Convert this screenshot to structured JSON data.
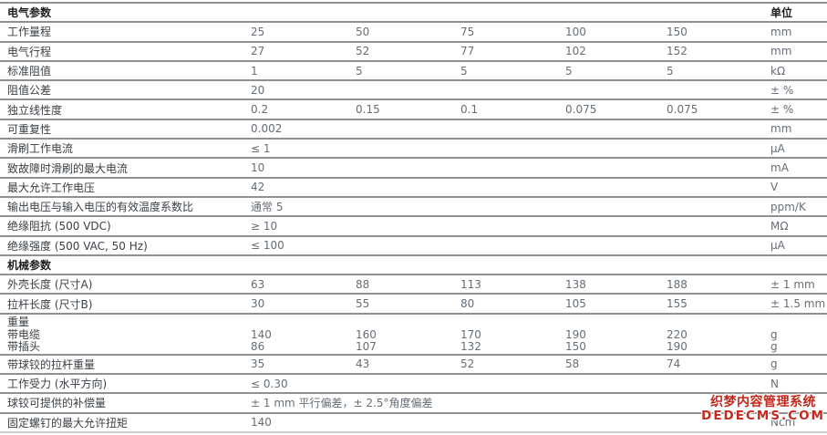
{
  "colors": {
    "row_line": "#a2a2a2",
    "label_text": "#3b4045",
    "value_text": "#666e76",
    "header_text": "#1d1f21",
    "watermark_red": "#c5281c"
  },
  "table": {
    "rows": [
      {
        "type": "section",
        "label": "电气参数",
        "unit": "单位"
      },
      {
        "type": "data",
        "label": "工作量程",
        "values": [
          "25",
          "50",
          "75",
          "100",
          "150"
        ],
        "unit": "mm"
      },
      {
        "type": "data",
        "label": "电气行程",
        "values": [
          "27",
          "52",
          "77",
          "102",
          "152"
        ],
        "unit": "mm"
      },
      {
        "type": "data",
        "label": "标准阻值",
        "values": [
          "1",
          "5",
          "5",
          "5",
          "5"
        ],
        "unit": "kΩ"
      },
      {
        "type": "data",
        "label": "阻值公差",
        "values": [
          "20",
          "",
          "",
          "",
          ""
        ],
        "unit": "± %"
      },
      {
        "type": "data",
        "label": "独立线性度",
        "values": [
          "0.2",
          "0.15",
          "0.1",
          "0.075",
          "0.075"
        ],
        "unit": "± %"
      },
      {
        "type": "data",
        "label": "可重复性",
        "values": [
          "0.002",
          "",
          "",
          "",
          ""
        ],
        "unit": "mm"
      },
      {
        "type": "data",
        "label": "滑刷工作电流",
        "values": [
          "≤ 1",
          "",
          "",
          "",
          ""
        ],
        "unit": "µA"
      },
      {
        "type": "data",
        "label": "致故障时滑刷的最大电流",
        "values": [
          "10",
          "",
          "",
          "",
          ""
        ],
        "unit": "mA"
      },
      {
        "type": "data",
        "label": "最大允许工作电压",
        "values": [
          "42",
          "",
          "",
          "",
          ""
        ],
        "unit": "V"
      },
      {
        "type": "data",
        "label": "输出电压与输入电压的有效温度系数比",
        "values": [
          "通常 5",
          "",
          "",
          "",
          ""
        ],
        "unit": "ppm/K"
      },
      {
        "type": "data",
        "label": "绝缘阻抗 (500 VDC)",
        "values": [
          "≥ 10",
          "",
          "",
          "",
          ""
        ],
        "unit": "MΩ"
      },
      {
        "type": "data",
        "label": "绝缘强度 (500 VAC, 50 Hz)",
        "values": [
          "≤ 100",
          "",
          "",
          "",
          ""
        ],
        "unit": "µA"
      },
      {
        "type": "section",
        "label": "机械参数",
        "unit": ""
      },
      {
        "type": "data",
        "label": "外壳长度 (尺寸A)",
        "values": [
          "63",
          "88",
          "113",
          "138",
          "188"
        ],
        "unit": "± 1 mm"
      },
      {
        "type": "data",
        "label": "拉杆长度 (尺寸B)",
        "values": [
          "30",
          "55",
          "80",
          "105",
          "155"
        ],
        "unit": "± 1.5 mm"
      },
      {
        "type": "group",
        "label": "重量",
        "sub_rows": [
          {
            "label": "带电缆",
            "values": [
              "140",
              "160",
              "170",
              "190",
              "220"
            ],
            "unit": "g"
          },
          {
            "label": "带插头",
            "values": [
              "86",
              "107",
              "132",
              "150",
              "190"
            ],
            "unit": "g"
          }
        ]
      },
      {
        "type": "data",
        "label": "带球铰的拉杆重量",
        "values": [
          "35",
          "43",
          "52",
          "58",
          "74"
        ],
        "unit": "g"
      },
      {
        "type": "data",
        "label": "工作受力 (水平方向)",
        "values": [
          "≤ 0.30",
          "",
          "",
          "",
          ""
        ],
        "unit": "N"
      },
      {
        "type": "data",
        "label": "球铰可提供的补偿量",
        "values": [
          "± 1 mm 平行偏差，± 2.5°角度偏差",
          "",
          "",
          "",
          ""
        ],
        "unit": ""
      },
      {
        "type": "data",
        "label": "固定螺钉的最大允许扭矩",
        "values": [
          "140",
          "",
          "",
          "",
          ""
        ],
        "unit": "Ncm"
      }
    ]
  },
  "watermark": {
    "line1": "织梦内容管理系统",
    "line2": "DEDECMS.COM"
  }
}
